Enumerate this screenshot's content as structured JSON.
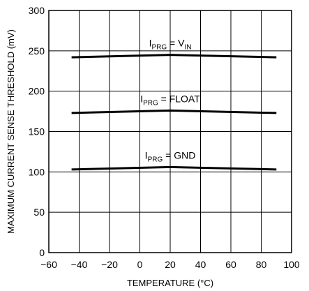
{
  "chart_data": {
    "type": "line",
    "xlabel": "TEMPERATURE (°C)",
    "ylabel": "MAXIMUM CURRENT SENSE THRESHOLD (mV)",
    "xlim": [
      -60,
      100
    ],
    "ylim": [
      0,
      300
    ],
    "x_ticks": [
      "−60",
      "−40",
      "−20",
      "0",
      "20",
      "40",
      "60",
      "80",
      "100"
    ],
    "y_ticks": [
      "0",
      "50",
      "100",
      "150",
      "200",
      "250",
      "300"
    ],
    "grid": true,
    "legend": "none",
    "series": [
      {
        "label_main": "I",
        "label_sub": "PRG",
        "label_mid": " = V",
        "label_sub2": "IN",
        "x": [
          -45,
          20,
          90
        ],
        "y": [
          242,
          245,
          242
        ]
      },
      {
        "label_main": "I",
        "label_sub": "PRG",
        "label_mid": " = FLOAT",
        "label_sub2": "",
        "x": [
          -45,
          20,
          90
        ],
        "y": [
          173,
          176,
          173
        ]
      },
      {
        "label_main": "I",
        "label_sub": "PRG",
        "label_mid": " = GND",
        "label_sub2": "",
        "x": [
          -45,
          20,
          90
        ],
        "y": [
          103,
          106,
          103
        ]
      }
    ],
    "line_color": "#000000",
    "grid_color": "#000000"
  }
}
